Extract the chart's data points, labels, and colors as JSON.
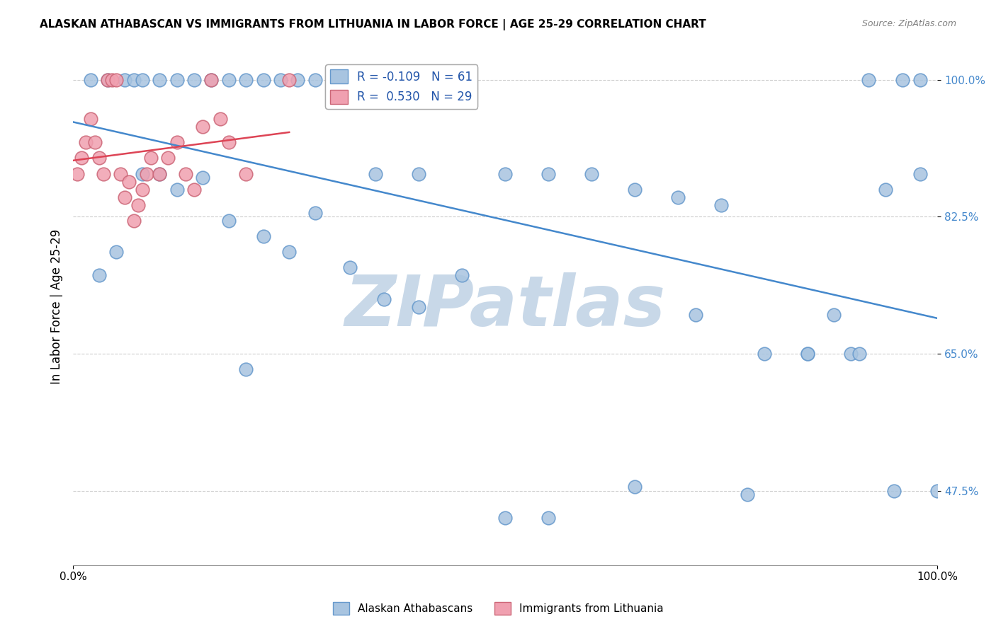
{
  "title": "ALASKAN ATHABASCAN VS IMMIGRANTS FROM LITHUANIA IN LABOR FORCE | AGE 25-29 CORRELATION CHART",
  "source": "Source: ZipAtlas.com",
  "xlabel": "",
  "ylabel": "In Labor Force | Age 25-29",
  "xlim": [
    0.0,
    1.0
  ],
  "ylim": [
    0.38,
    1.04
  ],
  "yticks": [
    0.475,
    0.65,
    0.825,
    1.0
  ],
  "ytick_labels": [
    "47.5%",
    "65.0%",
    "82.5%",
    "100.0%"
  ],
  "xtick_labels": [
    "0.0%",
    "100.0%"
  ],
  "xticks": [
    0.0,
    1.0
  ],
  "blue_R": -0.109,
  "blue_N": 61,
  "pink_R": 0.53,
  "pink_N": 29,
  "blue_color": "#a8c4e0",
  "pink_color": "#f0a0b0",
  "blue_edge": "#6699cc",
  "pink_edge": "#cc6677",
  "trend_blue": "#4488cc",
  "trend_pink": "#dd4455",
  "watermark": "ZIPatlas",
  "watermark_color": "#c8d8e8",
  "blue_scatter_x": [
    0.02,
    0.04,
    0.06,
    0.07,
    0.08,
    0.1,
    0.12,
    0.14,
    0.16,
    0.18,
    0.2,
    0.22,
    0.24,
    0.26,
    0.28,
    0.3,
    0.35,
    0.38,
    0.4,
    0.42,
    0.44,
    0.46,
    0.5,
    0.55,
    0.6,
    0.65,
    0.7,
    0.75,
    0.8,
    0.85,
    0.88,
    0.9,
    0.92,
    0.94,
    0.96,
    0.98,
    1.0,
    0.03,
    0.05,
    0.08,
    0.1,
    0.12,
    0.15,
    0.18,
    0.2,
    0.22,
    0.25,
    0.28,
    0.32,
    0.36,
    0.4,
    0.45,
    0.5,
    0.55,
    0.65,
    0.72,
    0.78,
    0.85,
    0.91,
    0.95,
    0.98
  ],
  "blue_scatter_y": [
    1.0,
    1.0,
    1.0,
    1.0,
    1.0,
    1.0,
    1.0,
    1.0,
    1.0,
    1.0,
    1.0,
    1.0,
    1.0,
    1.0,
    1.0,
    1.0,
    0.88,
    1.0,
    0.88,
    1.0,
    1.0,
    1.0,
    0.88,
    0.88,
    0.88,
    0.86,
    0.85,
    0.84,
    0.65,
    0.65,
    0.7,
    0.65,
    1.0,
    0.86,
    1.0,
    1.0,
    0.475,
    0.75,
    0.78,
    0.88,
    0.88,
    0.86,
    0.875,
    0.82,
    0.63,
    0.8,
    0.78,
    0.83,
    0.76,
    0.72,
    0.71,
    0.75,
    0.44,
    0.44,
    0.48,
    0.7,
    0.47,
    0.65,
    0.65,
    0.475,
    0.88
  ],
  "pink_scatter_x": [
    0.005,
    0.01,
    0.015,
    0.02,
    0.025,
    0.03,
    0.035,
    0.04,
    0.045,
    0.05,
    0.055,
    0.06,
    0.065,
    0.07,
    0.075,
    0.08,
    0.085,
    0.09,
    0.1,
    0.11,
    0.12,
    0.13,
    0.14,
    0.15,
    0.16,
    0.17,
    0.18,
    0.2,
    0.25
  ],
  "pink_scatter_y": [
    0.88,
    0.9,
    0.92,
    0.95,
    0.92,
    0.9,
    0.88,
    1.0,
    1.0,
    1.0,
    0.88,
    0.85,
    0.87,
    0.82,
    0.84,
    0.86,
    0.88,
    0.9,
    0.88,
    0.9,
    0.92,
    0.88,
    0.86,
    0.94,
    1.0,
    0.95,
    0.92,
    0.88,
    1.0
  ]
}
